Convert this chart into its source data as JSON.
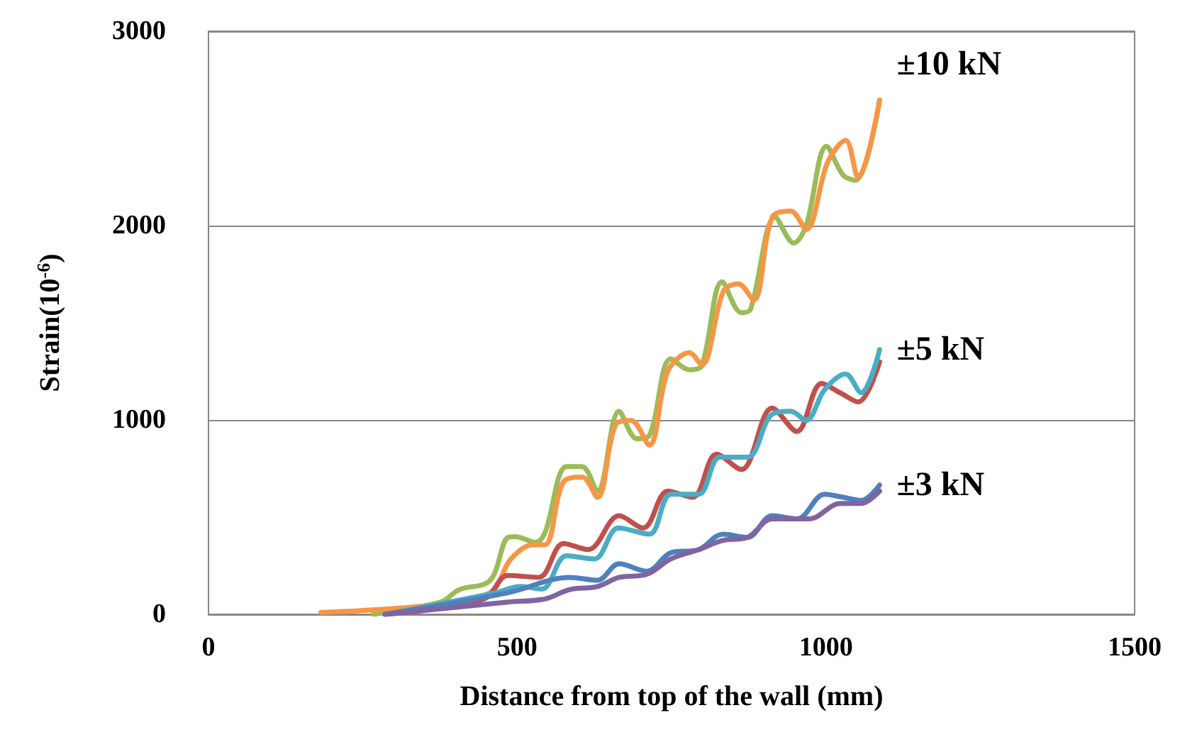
{
  "chart_data": {
    "type": "line",
    "xlabel": "Distance from top of the wall (mm)",
    "ylabel": "Strain(10$^{-6}$)",
    "xlim": [
      0,
      1500
    ],
    "xticks": [
      0,
      500,
      1000,
      1500
    ],
    "ylim": [
      0,
      3000
    ],
    "yticks": [
      0,
      1000,
      2000,
      3000
    ],
    "grid": "y",
    "marker": "none",
    "line_style": "solid",
    "annotations": [
      "±10 kN",
      "±5 kN",
      "±3 kN"
    ],
    "series": [
      {
        "color": "#9bbb59",
        "x": [
          267,
          376,
          406,
          456,
          485,
          497,
          530,
          545,
          580,
          605,
          630,
          665,
          694,
          714,
          749,
          779,
          799,
          832,
          863,
          878,
          918,
          948,
          968,
          1001,
          1028,
          1048,
          1087
        ],
        "values": [
          0,
          63,
          127,
          174,
          396,
          400,
          370,
          420,
          760,
          760,
          634,
          1045,
          903,
          920,
          1315,
          1258,
          1280,
          1711,
          1552,
          1570,
          2043,
          1910,
          2000,
          2408,
          2259,
          2233,
          2645
        ]
      },
      {
        "color": "#f79646",
        "x": [
          182,
          366,
          456,
          490,
          525,
          545,
          575,
          605,
          630,
          659,
          684,
          714,
          744,
          779,
          799,
          834,
          858,
          883,
          913,
          943,
          968,
          1003,
          1032,
          1052,
          1087
        ],
        "values": [
          10,
          48,
          111,
          285,
          358,
          358,
          681,
          706,
          602,
          973,
          998,
          871,
          1251,
          1346,
          1283,
          1663,
          1701,
          1616,
          2043,
          2075,
          1980,
          2328,
          2439,
          2249,
          2645
        ]
      },
      {
        "color": "#c0504d",
        "x": [
          286,
          446,
          485,
          535,
          575,
          615,
          665,
          704,
          744,
          784,
          823,
          863,
          913,
          953,
          993,
          1023,
          1052,
          1087
        ],
        "values": [
          0,
          79,
          200,
          190,
          364,
          333,
          507,
          444,
          634,
          602,
          824,
          745,
          1061,
          941,
          1188,
          1140,
          1093,
          1299
        ]
      },
      {
        "color": "#4bacc6",
        "x": [
          286,
          465,
          505,
          540,
          580,
          625,
          664,
          714,
          749,
          794,
          828,
          873,
          913,
          943,
          968,
          998,
          1032,
          1057,
          1087
        ],
        "values": [
          0,
          111,
          143,
          130,
          301,
          285,
          444,
          412,
          618,
          618,
          808,
          808,
          1030,
          1045,
          998,
          1156,
          1236,
          1140,
          1362
        ]
      },
      {
        "color": "#4f81bd",
        "x": [
          286,
          485,
          585,
          630,
          665,
          710,
          749,
          794,
          833,
          873,
          913,
          953,
          998,
          1028,
          1057,
          1087
        ],
        "values": [
          0,
          111,
          190,
          175,
          260,
          222,
          317,
          333,
          412,
          396,
          507,
          491,
          618,
          602,
          586,
          665
        ]
      },
      {
        "color": "#8064a2",
        "x": [
          286,
          485,
          545,
          585,
          630,
          665,
          710,
          749,
          794,
          833,
          873,
          913,
          973,
          1023,
          1057,
          1087
        ],
        "values": [
          0,
          63,
          79,
          127,
          143,
          190,
          206,
          285,
          333,
          380,
          396,
          491,
          491,
          570,
          570,
          634
        ]
      }
    ]
  }
}
